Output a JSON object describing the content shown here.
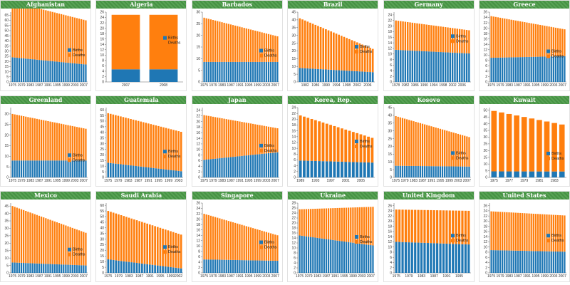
{
  "colors": {
    "births": "#1f77b4",
    "deaths": "#ff7f0e",
    "header": "#4a9a47"
  },
  "legend": [
    "Births",
    "Deaths"
  ],
  "chart_data": [
    {
      "type": "bar",
      "stacked": true,
      "title": "Afghanistan",
      "x_start": 1975,
      "x_end": 2008,
      "xticks": [
        "1975",
        "1979",
        "1983",
        "1987",
        "1991",
        "1995",
        "1999",
        "2003",
        "2007"
      ],
      "yticks": [
        0,
        5,
        10,
        15,
        20,
        25,
        30,
        35,
        40,
        45,
        50,
        55,
        60,
        65
      ],
      "ylim": [
        0,
        68
      ],
      "series": [
        {
          "name": "Births",
          "start": 24,
          "end": 17
        },
        {
          "name": "Deaths",
          "start": 54,
          "end": 43
        }
      ],
      "legend_y": 30
    },
    {
      "type": "bar",
      "stacked": true,
      "title": "Algeria",
      "categories": [
        "2007",
        "2008"
      ],
      "xticks": [
        "2007",
        "2008"
      ],
      "yticks": [
        0,
        2,
        4,
        6,
        8,
        10,
        12,
        14,
        16,
        18,
        20,
        22,
        24,
        26
      ],
      "ylim": [
        0,
        26
      ],
      "series": [
        {
          "name": "Births",
          "values": [
            4.7,
            4.7
          ]
        },
        {
          "name": "Deaths",
          "values": [
            20.3,
            20.3
          ]
        }
      ],
      "legend_y": 16
    },
    {
      "type": "bar",
      "stacked": true,
      "title": "Barbados",
      "x_start": 1975,
      "x_end": 2008,
      "xticks": [
        "1975",
        "1979",
        "1983",
        "1987",
        "1991",
        "1995",
        "1999",
        "2003",
        "2007"
      ],
      "yticks": [
        0,
        5,
        10,
        15,
        20,
        25,
        30
      ],
      "ylim": [
        0,
        30
      ],
      "series": [
        {
          "name": "Births",
          "start": 8.6,
          "end": 8.6
        },
        {
          "name": "Deaths",
          "start": 19,
          "end": 11
        }
      ],
      "legend_y": 13
    },
    {
      "type": "bar",
      "stacked": true,
      "title": "Brazil",
      "x_start": 1980,
      "x_end": 2008,
      "xticks": [
        "1982",
        "1986",
        "1990",
        "1994",
        "1998",
        "2002",
        "2006"
      ],
      "yticks": [
        0,
        5,
        10,
        15,
        20,
        25,
        30,
        35,
        40,
        45
      ],
      "ylim": [
        0,
        45
      ],
      "series": [
        {
          "name": "Births",
          "start": 9,
          "end": 6.3
        },
        {
          "name": "Deaths",
          "start": 32,
          "end": 15
        }
      ],
      "legend_y": 22
    },
    {
      "type": "bar",
      "stacked": true,
      "title": "Germany",
      "x_start": 1978,
      "x_end": 2009,
      "xticks": [
        "1978",
        "1982",
        "1986",
        "1990",
        "1994",
        "1998",
        "2002",
        "2006"
      ],
      "yticks": [
        0,
        2,
        4,
        6,
        8,
        10,
        12,
        14,
        16,
        18,
        20,
        22,
        24
      ],
      "ylim": [
        0,
        25
      ],
      "series": [
        {
          "name": "Births",
          "start": 11.5,
          "end": 10.2
        },
        {
          "name": "Deaths",
          "start": 10.5,
          "end": 8.3
        }
      ],
      "legend_y": 16
    },
    {
      "type": "bar",
      "stacked": true,
      "title": "Greece",
      "x_start": 1975,
      "x_end": 2008,
      "xticks": [
        "1975",
        "1979",
        "1983",
        "1987",
        "1991",
        "1995",
        "1999",
        "2003",
        "2007"
      ],
      "yticks": [
        0,
        2,
        4,
        6,
        8,
        10,
        12,
        14,
        16,
        18,
        20,
        22,
        24,
        26
      ],
      "ylim": [
        0,
        26
      ],
      "series": [
        {
          "name": "Births",
          "start": 9,
          "end": 9.6
        },
        {
          "name": "Deaths",
          "start": 15.5,
          "end": 10
        }
      ],
      "legend_y": 11
    },
    {
      "type": "bar",
      "stacked": true,
      "title": "Greenland",
      "x_start": 1975,
      "x_end": 2008,
      "xticks": [
        "1975",
        "1979",
        "1983",
        "1987",
        "1991",
        "1995",
        "1999",
        "2003",
        "2007"
      ],
      "yticks": [
        0,
        5,
        10,
        15,
        20,
        25,
        30
      ],
      "ylim": [
        0,
        33
      ],
      "series": [
        {
          "name": "Births",
          "start": 8,
          "end": 8
        },
        {
          "name": "Deaths",
          "start": 22,
          "end": 15
        }
      ],
      "legend_y": 10
    },
    {
      "type": "bar",
      "stacked": true,
      "title": "Guatemala",
      "x_start": 1975,
      "x_end": 2004,
      "xticks": [
        "1975",
        "1979",
        "1983",
        "1987",
        "1991",
        "1995",
        "1999",
        "2003"
      ],
      "yticks": [
        0,
        5,
        10,
        15,
        20,
        25,
        30,
        35,
        40,
        45,
        50,
        55,
        60
      ],
      "ylim": [
        0,
        62
      ],
      "series": [
        {
          "name": "Births",
          "start": 13,
          "end": 5.5
        },
        {
          "name": "Deaths",
          "start": 44,
          "end": 35
        }
      ],
      "legend_y": 22
    },
    {
      "type": "bar",
      "stacked": true,
      "title": "Japan",
      "x_start": 1975,
      "x_end": 2008,
      "xticks": [
        "1975",
        "1979",
        "1983",
        "1987",
        "1991",
        "1995",
        "1999",
        "2003",
        "2007"
      ],
      "yticks": [
        0,
        2,
        4,
        6,
        8,
        10,
        12,
        14,
        16,
        18,
        20,
        22,
        24
      ],
      "ylim": [
        0,
        25
      ],
      "series": [
        {
          "name": "Births",
          "start": 6.3,
          "end": 9
        },
        {
          "name": "Deaths",
          "start": 16,
          "end": 8.6
        }
      ],
      "legend_y": 11
    },
    {
      "type": "bar",
      "stacked": true,
      "title": "Korea, Rep.",
      "x_start": 1989,
      "x_end": 2008,
      "xticks": [
        "1989",
        "1993",
        "1997",
        "2001",
        "2005"
      ],
      "yticks": [
        0,
        2,
        4,
        6,
        8,
        10,
        12,
        14,
        16,
        18,
        20,
        22,
        24
      ],
      "ylim": [
        0,
        24
      ],
      "series": [
        {
          "name": "Births",
          "start": 5.8,
          "end": 5.1
        },
        {
          "name": "Deaths",
          "start": 15.5,
          "end": 8.5
        }
      ],
      "legend_y": 12
    },
    {
      "type": "bar",
      "stacked": true,
      "title": "Kosovo",
      "x_start": 1975,
      "x_end": 2008,
      "xticks": [
        "1975",
        "1979",
        "1983",
        "1987",
        "1991",
        "1995",
        "1999",
        "2003",
        "2007"
      ],
      "yticks": [
        0,
        5,
        10,
        15,
        20,
        25,
        30,
        35,
        40,
        45
      ],
      "ylim": [
        0,
        45
      ],
      "series": [
        {
          "name": "Births",
          "start": 7.5,
          "end": 7
        },
        {
          "name": "Deaths",
          "start": 32,
          "end": 19
        }
      ],
      "legend_y": 15
    },
    {
      "type": "bar",
      "stacked": true,
      "title": "Kuwait",
      "x_start": 1975,
      "x_end": 1984,
      "xticks": [
        "1975",
        "1977",
        "1979",
        "1981",
        "1983"
      ],
      "yticks": [
        0,
        5,
        10,
        15,
        20,
        25,
        30,
        35,
        40,
        45,
        50
      ],
      "ylim": [
        0,
        52
      ],
      "series": [
        {
          "name": "Births",
          "start": 4.5,
          "end": 4.4
        },
        {
          "name": "Deaths",
          "start": 45,
          "end": 35
        }
      ],
      "legend_y": 17
    },
    {
      "type": "bar",
      "stacked": true,
      "title": "Mexico",
      "x_start": 1975,
      "x_end": 2008,
      "xticks": [
        "1975",
        "1979",
        "1983",
        "1987",
        "1991",
        "1995",
        "1999",
        "2003",
        "2007"
      ],
      "yticks": [
        0,
        5,
        10,
        15,
        20,
        25,
        30,
        35,
        40,
        45
      ],
      "ylim": [
        0,
        47
      ],
      "series": [
        {
          "name": "Births",
          "start": 7,
          "end": 5
        },
        {
          "name": "Deaths",
          "start": 38,
          "end": 22
        }
      ],
      "legend_y": 15
    },
    {
      "type": "bar",
      "stacked": true,
      "title": "Saudi Arabia",
      "x_start": 1975,
      "x_end": 2003,
      "xticks": [
        "1975",
        "1979",
        "1983",
        "1987",
        "1991",
        "1995",
        "1999",
        "2002"
      ],
      "yticks": [
        0,
        5,
        10,
        15,
        20,
        25,
        30,
        35,
        40,
        45,
        50,
        55,
        60
      ],
      "ylim": [
        0,
        62
      ],
      "series": [
        {
          "name": "Births",
          "start": 12,
          "end": 4
        },
        {
          "name": "Deaths",
          "start": 43,
          "end": 30
        }
      ],
      "legend_y": 22
    },
    {
      "type": "bar",
      "stacked": true,
      "title": "Singapore",
      "x_start": 1975,
      "x_end": 2008,
      "xticks": [
        "1975",
        "1979",
        "1983",
        "1987",
        "1991",
        "1995",
        "1999",
        "2003",
        "2007"
      ],
      "yticks": [
        0,
        2,
        4,
        6,
        8,
        10,
        12,
        14,
        16,
        18,
        20,
        22,
        24,
        26
      ],
      "ylim": [
        0,
        26
      ],
      "series": [
        {
          "name": "Births",
          "start": 5,
          "end": 4.5
        },
        {
          "name": "Deaths",
          "start": 17,
          "end": 9.5
        }
      ],
      "legend_y": 11
    },
    {
      "type": "bar",
      "stacked": true,
      "title": "Ukraine",
      "x_start": 1975,
      "x_end": 2008,
      "xticks": [
        "1975",
        "1979",
        "1983",
        "1987",
        "1991",
        "1995",
        "1999",
        "2003",
        "2007"
      ],
      "yticks": [
        0,
        2,
        4,
        6,
        8,
        10,
        12,
        14,
        16,
        18,
        20,
        22,
        24,
        26,
        28
      ],
      "ylim": [
        0,
        28
      ],
      "series": [
        {
          "name": "Births",
          "start": 15,
          "end": 11
        },
        {
          "name": "Deaths",
          "start": 10.5,
          "end": 15.5
        }
      ],
      "legend_y": 14
    },
    {
      "type": "bar",
      "stacked": true,
      "title": "United Kingdom",
      "x_start": 1975,
      "x_end": 1998,
      "xticks": [
        "1975",
        "1979",
        "1983",
        "1987",
        "1991",
        "1995"
      ],
      "yticks": [
        0,
        2,
        4,
        6,
        8,
        10,
        12,
        14,
        16,
        18,
        20,
        22,
        24,
        26
      ],
      "ylim": [
        0,
        27
      ],
      "series": [
        {
          "name": "Births",
          "start": 12,
          "end": 11
        },
        {
          "name": "Deaths",
          "start": 12.5,
          "end": 13
        }
      ],
      "legend_y": 14
    },
    {
      "type": "bar",
      "stacked": true,
      "title": "United States",
      "x_start": 1975,
      "x_end": 2008,
      "xticks": [
        "1975",
        "1979",
        "1983",
        "1987",
        "1991",
        "1995",
        "1999",
        "2003",
        "2007"
      ],
      "yticks": [
        0,
        2,
        4,
        6,
        8,
        10,
        12,
        14,
        16,
        18,
        20,
        22,
        24,
        26
      ],
      "ylim": [
        0,
        27
      ],
      "series": [
        {
          "name": "Births",
          "start": 8.8,
          "end": 8.2
        },
        {
          "name": "Deaths",
          "start": 15,
          "end": 14
        }
      ],
      "legend_y": 14
    }
  ]
}
